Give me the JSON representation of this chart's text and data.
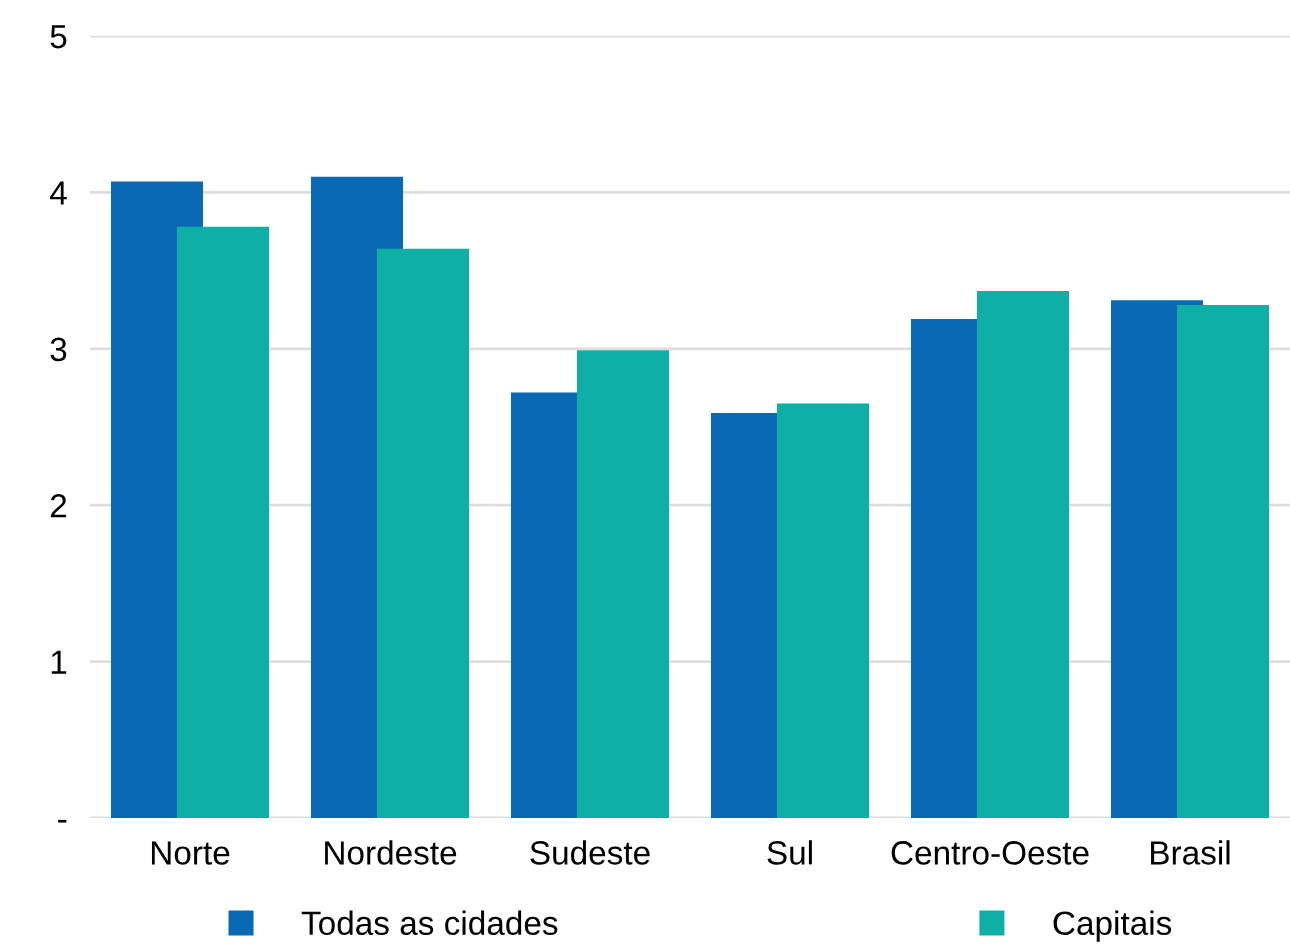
{
  "chart_data": {
    "type": "bar",
    "categories": [
      "Norte",
      "Nordeste",
      "Sudeste",
      "Sul",
      "Centro-Oeste",
      "Brasil"
    ],
    "series": [
      {
        "name": "Todas as cidades",
        "color": "#0a69b4",
        "values": [
          4.07,
          4.1,
          2.72,
          2.59,
          3.19,
          3.31
        ]
      },
      {
        "name": "Capitais",
        "color": "#0eb0a6",
        "values": [
          3.78,
          3.64,
          2.99,
          2.65,
          3.37,
          3.28
        ]
      }
    ],
    "ylim": [
      0,
      5
    ],
    "yticks": [
      {
        "value": 0,
        "label": "-"
      },
      1,
      2,
      3,
      4,
      5
    ],
    "grid": "y",
    "legend": "bottom"
  }
}
